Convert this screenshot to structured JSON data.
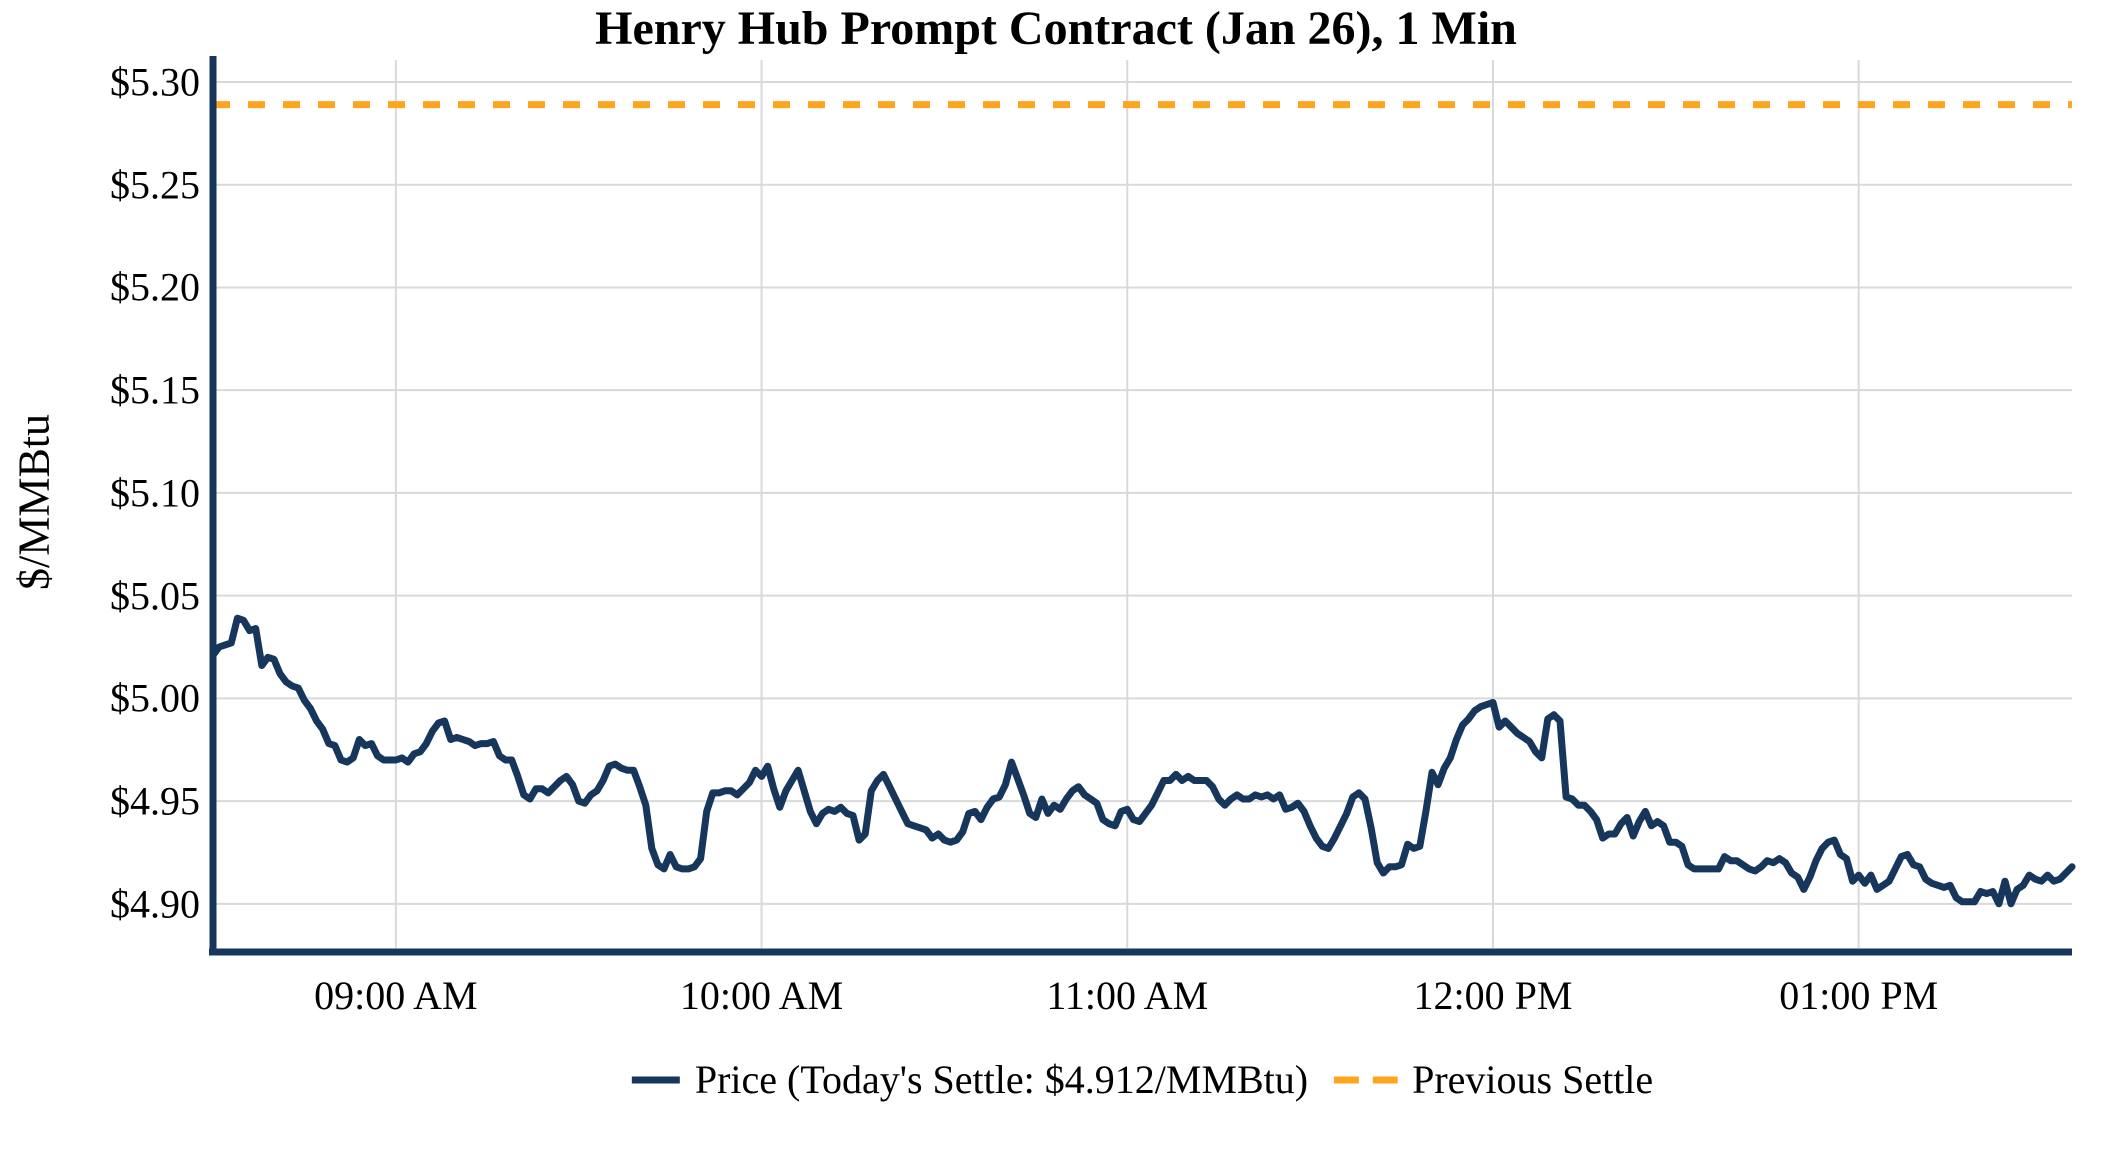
{
  "title": "Henry Hub Prompt Contract (Jan 26), 1 Min",
  "legend": {
    "price_label": "Price (Today's Settle: $4.912/MMBtu)",
    "previous_settle_label": "Previous Settle"
  },
  "colors": {
    "price_line": "#17365c",
    "previous_settle_line": "#ffa41e",
    "gridline": "#d9d9d9",
    "axis": "#17365c"
  },
  "chart_data": {
    "type": "line",
    "title": "Henry Hub Prompt Contract (Jan 26), 1 Min",
    "xlabel": "",
    "ylabel": "$/MMBtu",
    "grid": true,
    "legend_position": "bottom-center",
    "today_settle": 4.912,
    "x_start_time": "08:30 AM",
    "x_end_time": "01:35 PM",
    "x_interval_minutes": 1,
    "ylim": [
      4.8785,
      5.3107
    ],
    "y_ticks": [
      {
        "label": "$5.30",
        "value": 5.3
      },
      {
        "label": "$5.25",
        "value": 5.25
      },
      {
        "label": "$5.20",
        "value": 5.2
      },
      {
        "label": "$5.15",
        "value": 5.15
      },
      {
        "label": "$5.10",
        "value": 5.1
      },
      {
        "label": "$5.05",
        "value": 5.05
      },
      {
        "label": "$5.00",
        "value": 5.0
      },
      {
        "label": "$4.95",
        "value": 4.95
      },
      {
        "label": "$4.90",
        "value": 4.9
      }
    ],
    "x_ticks": [
      {
        "label": "09:00 AM",
        "minute": 30
      },
      {
        "label": "10:00 AM",
        "minute": 90
      },
      {
        "label": "11:00 AM",
        "minute": 150
      },
      {
        "label": "12:00 PM",
        "minute": 210
      },
      {
        "label": "01:00 PM",
        "minute": 270
      }
    ],
    "series": [
      {
        "name": "Price (Today's Settle: $4.912/MMBtu)",
        "color": "#17365c",
        "style": "solid",
        "values": [
          5.021,
          5.025,
          5.026,
          5.027,
          5.039,
          5.038,
          5.033,
          5.034,
          5.016,
          5.02,
          5.019,
          5.012,
          5.008,
          5.006,
          5.005,
          4.999,
          4.995,
          4.989,
          4.985,
          4.978,
          4.977,
          4.97,
          4.969,
          4.971,
          4.98,
          4.977,
          4.978,
          4.972,
          4.97,
          4.97,
          4.97,
          4.971,
          4.969,
          4.973,
          4.974,
          4.978,
          4.984,
          4.988,
          4.989,
          4.98,
          4.981,
          4.98,
          4.979,
          4.977,
          4.978,
          4.978,
          4.979,
          4.972,
          4.97,
          4.97,
          4.962,
          4.953,
          4.951,
          4.956,
          4.956,
          4.954,
          4.957,
          4.96,
          4.962,
          4.958,
          4.95,
          4.949,
          4.953,
          4.955,
          4.96,
          4.967,
          4.968,
          4.966,
          4.965,
          4.965,
          4.957,
          4.948,
          4.927,
          4.919,
          4.917,
          4.924,
          4.918,
          4.917,
          4.917,
          4.918,
          4.922,
          4.945,
          4.954,
          4.954,
          4.955,
          4.955,
          4.953,
          4.956,
          4.959,
          4.965,
          4.962,
          4.967,
          4.956,
          4.947,
          4.955,
          4.96,
          4.965,
          4.955,
          4.945,
          4.939,
          4.944,
          4.946,
          4.945,
          4.947,
          4.944,
          4.943,
          4.931,
          4.934,
          4.955,
          4.96,
          4.963,
          4.957,
          4.951,
          4.945,
          4.939,
          4.938,
          4.937,
          4.936,
          4.932,
          4.934,
          4.931,
          4.93,
          4.931,
          4.935,
          4.944,
          4.945,
          4.941,
          4.947,
          4.951,
          4.952,
          4.958,
          4.969,
          4.961,
          4.953,
          4.944,
          4.942,
          4.951,
          4.944,
          4.948,
          4.946,
          4.951,
          4.955,
          4.957,
          4.953,
          4.951,
          4.949,
          4.941,
          4.939,
          4.938,
          4.945,
          4.946,
          4.941,
          4.94,
          4.944,
          4.948,
          4.954,
          4.96,
          4.96,
          4.963,
          4.96,
          4.962,
          4.96,
          4.96,
          4.96,
          4.957,
          4.951,
          4.948,
          4.951,
          4.953,
          4.951,
          4.951,
          4.953,
          4.952,
          4.953,
          4.951,
          4.953,
          4.946,
          4.947,
          4.949,
          4.945,
          4.938,
          4.932,
          4.928,
          4.927,
          4.932,
          4.938,
          4.944,
          4.952,
          4.954,
          4.951,
          4.937,
          4.92,
          4.915,
          4.918,
          4.918,
          4.919,
          4.929,
          4.927,
          4.928,
          4.945,
          4.964,
          4.958,
          4.966,
          4.971,
          4.98,
          4.987,
          4.99,
          4.994,
          4.996,
          4.997,
          4.998,
          4.986,
          4.989,
          4.986,
          4.983,
          4.981,
          4.979,
          4.974,
          4.971,
          4.99,
          4.992,
          4.989,
          4.952,
          4.951,
          4.948,
          4.948,
          4.945,
          4.941,
          4.932,
          4.934,
          4.934,
          4.939,
          4.942,
          4.933,
          4.94,
          4.945,
          4.938,
          4.94,
          4.938,
          4.93,
          4.93,
          4.928,
          4.919,
          4.917,
          4.917,
          4.917,
          4.917,
          4.917,
          4.923,
          4.921,
          4.921,
          4.919,
          4.917,
          4.916,
          4.918,
          4.921,
          4.92,
          4.922,
          4.92,
          4.915,
          4.913,
          4.907,
          4.913,
          4.921,
          4.927,
          4.93,
          4.931,
          4.924,
          4.922,
          4.911,
          4.914,
          4.91,
          4.914,
          4.907,
          4.909,
          4.911,
          4.917,
          4.923,
          4.924,
          4.919,
          4.918,
          4.912,
          4.91,
          4.909,
          4.908,
          4.909,
          4.903,
          4.901,
          4.901,
          4.901,
          4.906,
          4.905,
          4.906,
          4.9,
          4.911,
          4.9,
          4.907,
          4.909,
          4.914,
          4.912,
          4.911,
          4.914,
          4.911,
          4.912,
          4.915,
          4.918
        ]
      },
      {
        "name": "Previous Settle",
        "color": "#ffa41e",
        "style": "dashed",
        "value": 5.289
      }
    ]
  }
}
